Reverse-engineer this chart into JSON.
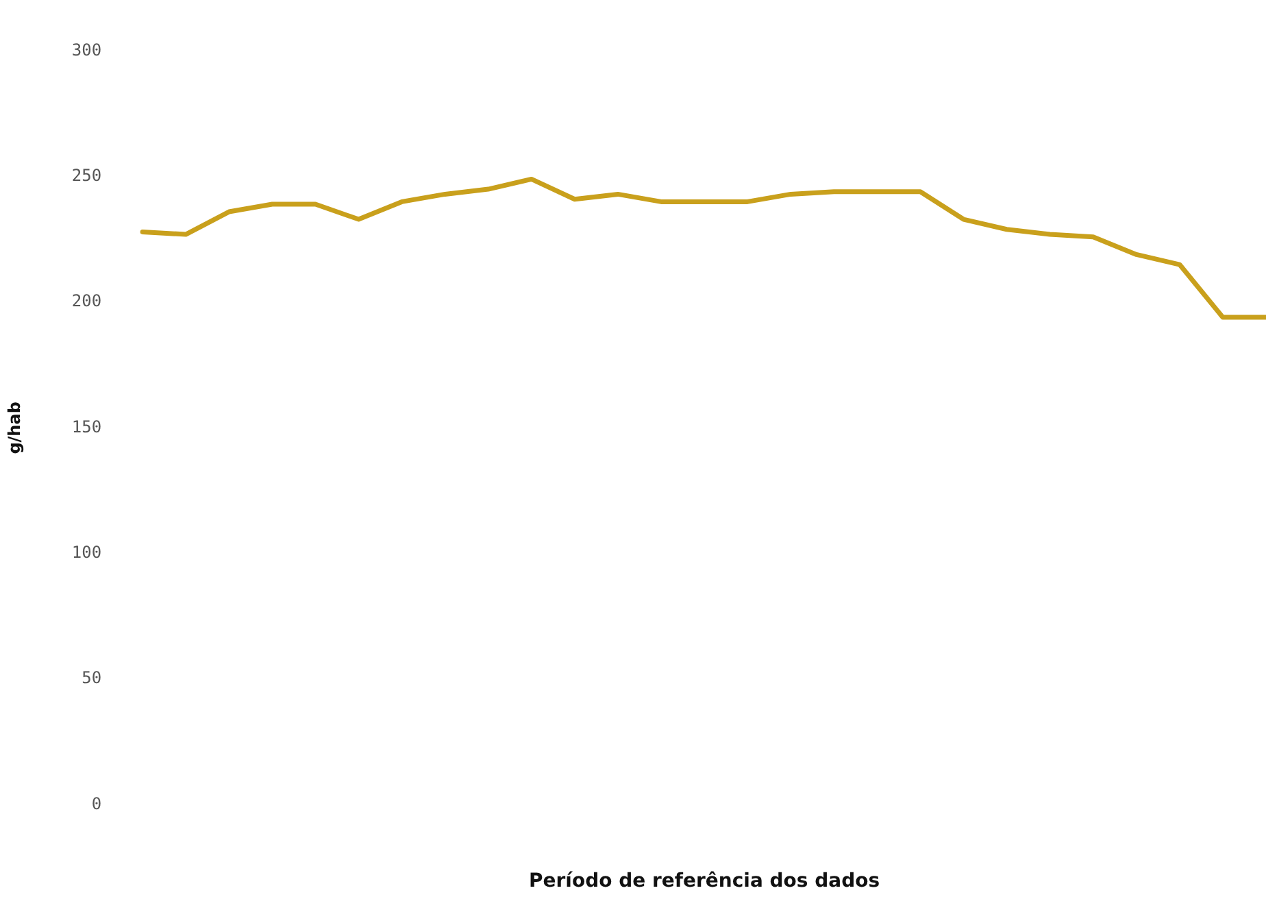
{
  "chart_data": {
    "type": "line",
    "xlabel": "Período de referência dos dados",
    "ylabel": "g/hab",
    "categories": [
      null,
      null,
      null,
      null,
      null,
      null,
      null,
      null,
      null,
      null,
      null,
      null,
      null,
      null,
      null,
      null,
      null,
      null,
      null,
      null,
      null,
      null,
      null,
      null,
      null,
      null,
      null
    ],
    "series": [
      {
        "color": "#c9a01c",
        "values": [
          228,
          227,
          236,
          239,
          239,
          233,
          240,
          243,
          245,
          249,
          241,
          243,
          240,
          240,
          240,
          243,
          244,
          244,
          244,
          233,
          229,
          227,
          226,
          219,
          215,
          194,
          194
        ]
      }
    ],
    "ylim": [
      0,
      300
    ],
    "yticks": [
      0,
      50,
      100,
      150,
      200,
      250,
      300
    ],
    "grid": false,
    "legend": false,
    "marker": "none",
    "line_style": "solid",
    "tick_labels": "y"
  }
}
